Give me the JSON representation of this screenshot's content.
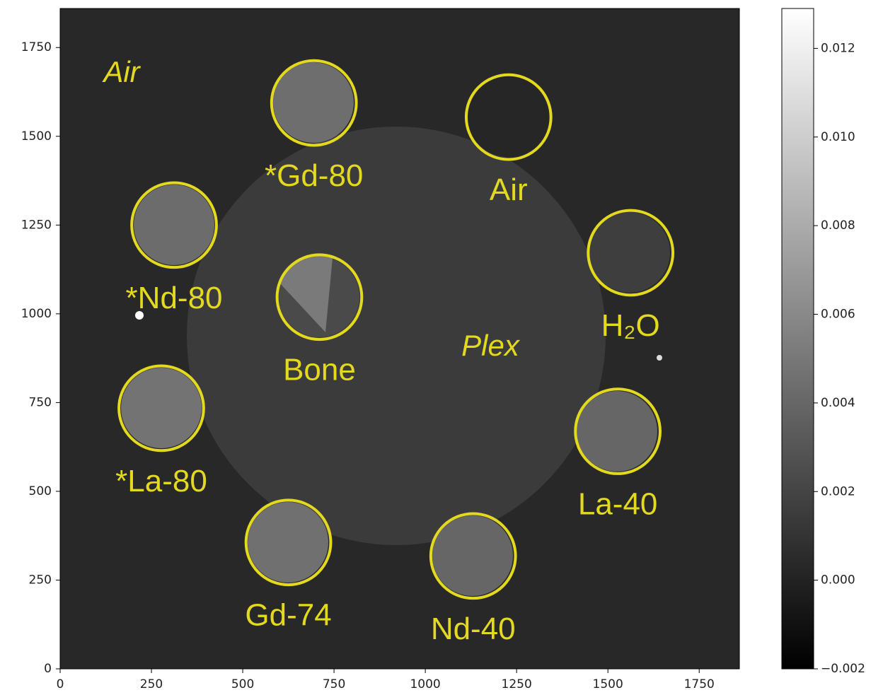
{
  "chart_data": {
    "type": "image",
    "xlim": [
      0,
      1860
    ],
    "ylim": [
      0,
      1860
    ],
    "xticks": [
      0,
      250,
      500,
      750,
      1000,
      1250,
      1500,
      1750
    ],
    "yticks": [
      0,
      250,
      500,
      750,
      1000,
      1250,
      1500,
      1750
    ],
    "colorbar": {
      "lim": [
        -0.002,
        0.0129
      ],
      "ticks": [
        {
          "value": -0.002,
          "label": "−0.002"
        },
        {
          "value": 0,
          "label": "0.000"
        },
        0.002,
        0.004,
        0.006,
        0.008,
        {
          "value": 0.01,
          "label": "0.010"
        },
        0.012
      ]
    },
    "roi_color": "#e3d91f",
    "rois": [
      {
        "label": "*Gd-80",
        "x": 695,
        "y": 1594,
        "r": 116
      },
      {
        "label": "Air",
        "x": 1228,
        "y": 1554,
        "r": 116
      },
      {
        "label": "H₂O",
        "x": 1562,
        "y": 1172,
        "r": 116
      },
      {
        "label": "La-40",
        "x": 1527,
        "y": 669,
        "r": 116
      },
      {
        "label": "Nd-40",
        "x": 1131,
        "y": 318,
        "r": 116
      },
      {
        "label": "Gd-74",
        "x": 625,
        "y": 356,
        "r": 116
      },
      {
        "label": "*La-80",
        "x": 277,
        "y": 734,
        "r": 116
      },
      {
        "label": "*Nd-80",
        "x": 312,
        "y": 1250,
        "r": 116
      },
      {
        "label": "Bone",
        "x": 710,
        "y": 1047,
        "r": 116
      }
    ],
    "annotations": [
      {
        "text": "Air"
      },
      {
        "text": "Plex"
      }
    ]
  }
}
